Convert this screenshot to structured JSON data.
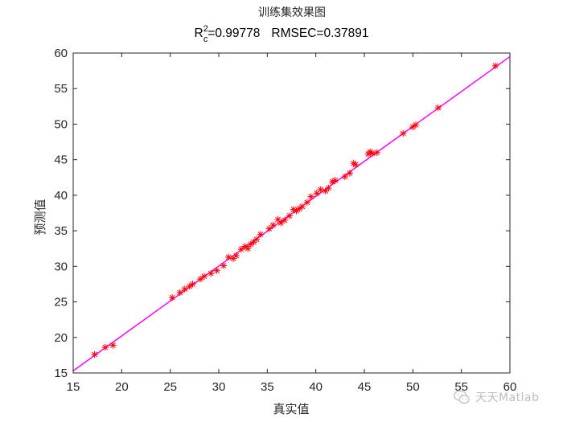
{
  "chart_data": {
    "type": "scatter",
    "title": "训练集效果图",
    "subtitle": {
      "r_prefix": "R",
      "r_sup": "2",
      "r_sub": "c",
      "r_value": "=0.99778",
      "rmsec": "RMSEC=0.37891"
    },
    "xlabel": "真实值",
    "ylabel": "预测值",
    "xlim": [
      15,
      60
    ],
    "ylim": [
      15,
      60
    ],
    "xticks": [
      "15",
      "20",
      "25",
      "30",
      "35",
      "40",
      "45",
      "50",
      "55",
      "60"
    ],
    "yticks": [
      "15",
      "20",
      "25",
      "30",
      "35",
      "40",
      "45",
      "50",
      "55",
      "60"
    ],
    "grid": false,
    "line": {
      "x": [
        15,
        60
      ],
      "y": [
        15.3,
        59.5
      ]
    },
    "series": [
      {
        "marker": "asterisk",
        "color": "#ff0000",
        "x": [
          17.2,
          18.3,
          19.1,
          25.2,
          26.0,
          26.5,
          27.0,
          27.3,
          28.1,
          28.5,
          29.2,
          29.8,
          30.5,
          31.0,
          31.5,
          31.8,
          32.3,
          32.7,
          33.0,
          33.3,
          33.6,
          33.9,
          34.3,
          35.2,
          35.6,
          36.1,
          36.4,
          36.8,
          37.3,
          37.7,
          38.0,
          38.3,
          38.6,
          39.1,
          39.5,
          40.1,
          40.5,
          41.0,
          41.3,
          41.7,
          42.0,
          43.0,
          43.5,
          43.9,
          44.1,
          45.4,
          45.6,
          45.8,
          46.3,
          49.0,
          50.0,
          50.3,
          52.6,
          58.5
        ],
        "y": [
          17.6,
          18.6,
          18.9,
          25.6,
          26.3,
          26.8,
          27.2,
          27.5,
          28.2,
          28.6,
          29.0,
          29.4,
          30.1,
          31.3,
          31.1,
          31.5,
          32.4,
          32.8,
          32.5,
          33.1,
          33.4,
          33.8,
          34.5,
          35.3,
          35.8,
          36.6,
          36.1,
          36.5,
          37.1,
          38.0,
          37.8,
          38.1,
          38.4,
          39.0,
          39.8,
          40.3,
          40.8,
          40.6,
          41.0,
          41.9,
          42.1,
          42.6,
          43.1,
          44.5,
          44.3,
          45.8,
          46.1,
          45.9,
          46.0,
          48.7,
          49.6,
          49.9,
          52.3,
          58.2
        ]
      }
    ],
    "colors": {
      "fit_line": "#ff00ff",
      "marker": "#ff0000",
      "axes": "#262626"
    }
  },
  "watermark": {
    "text": "天天Matlab",
    "icon": "wechat-icon"
  }
}
